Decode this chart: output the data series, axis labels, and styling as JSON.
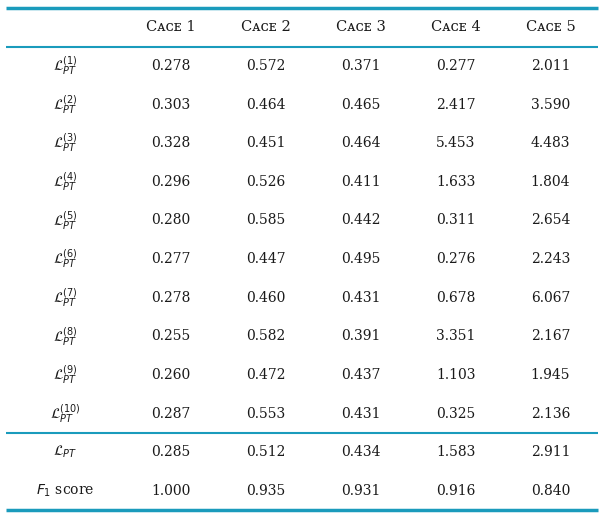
{
  "col_headers": [
    "Cᴀᴄᴇ 1",
    "Cᴀᴄᴇ 2",
    "Cᴀᴄᴇ 3",
    "Cᴀᴄᴇ 4",
    "Cᴀᴄᴇ 5"
  ],
  "row_labels": [
    "$\\mathcal{L}_{PT}^{(1)}$",
    "$\\mathcal{L}_{PT}^{(2)}$",
    "$\\mathcal{L}_{PT}^{(3)}$",
    "$\\mathcal{L}_{PT}^{(4)}$",
    "$\\mathcal{L}_{PT}^{(5)}$",
    "$\\mathcal{L}_{PT}^{(6)}$",
    "$\\mathcal{L}_{PT}^{(7)}$",
    "$\\mathcal{L}_{PT}^{(8)}$",
    "$\\mathcal{L}_{PT}^{(9)}$",
    "$\\mathcal{L}_{PT}^{(10)}$",
    "$\\mathcal{L}_{PT}$",
    "$F_1$ score"
  ],
  "data_str": [
    [
      "0.278",
      "0.572",
      "0.371",
      "0.277",
      "2.011"
    ],
    [
      "0.303",
      "0.464",
      "0.465",
      "2.417",
      "3.590"
    ],
    [
      "0.328",
      "0.451",
      "0.464",
      "5.453",
      "4.483"
    ],
    [
      "0.296",
      "0.526",
      "0.411",
      "1.633",
      "1.804"
    ],
    [
      "0.280",
      "0.585",
      "0.442",
      "0.311",
      "2.654"
    ],
    [
      "0.277",
      "0.447",
      "0.495",
      "0.276",
      "2.243"
    ],
    [
      "0.278",
      "0.460",
      "0.431",
      "0.678",
      "6.067"
    ],
    [
      "0.255",
      "0.582",
      "0.391",
      "3.351",
      "2.167"
    ],
    [
      "0.260",
      "0.472",
      "0.437",
      "1.103",
      "1.945"
    ],
    [
      "0.287",
      "0.553",
      "0.431",
      "0.325",
      "2.136"
    ],
    [
      "0.285",
      "0.512",
      "0.434",
      "1.583",
      "2.911"
    ],
    [
      "1.000",
      "0.935",
      "0.931",
      "0.916",
      "0.840"
    ]
  ],
  "background_color": "#ffffff",
  "border_color": "#1a9bbc",
  "text_color": "#1a1a1a",
  "header_color": "#1a1a1a",
  "line_color_thick": "#1a9bbc",
  "line_color_thin": "#1a9bbc",
  "figsize": [
    6.04,
    5.18
  ],
  "dpi": 100
}
